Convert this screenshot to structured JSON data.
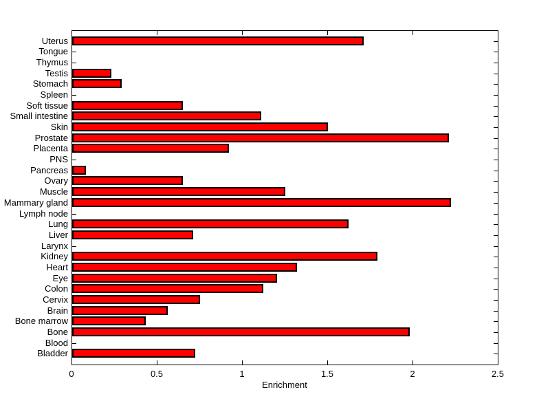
{
  "chart_data": {
    "type": "bar",
    "orientation": "horizontal",
    "title": "",
    "xlabel": "Enrichment",
    "ylabel": "",
    "xlim": [
      0,
      2.5
    ],
    "xticks": [
      0,
      0.5,
      1,
      1.5,
      2,
      2.5
    ],
    "xtick_labels": [
      "0",
      "0.5",
      "1",
      "1.5",
      "2",
      "2.5"
    ],
    "grid": false,
    "legend": null,
    "bar_color": "#FF0000",
    "bar_edge_color": "#000000",
    "background_color": "#FFFFFF",
    "categories": [
      "Uterus",
      "Tongue",
      "Thymus",
      "Testis",
      "Stomach",
      "Spleen",
      "Soft tissue",
      "Small intestine",
      "Skin",
      "Prostate",
      "Placenta",
      "PNS",
      "Pancreas",
      "Ovary",
      "Muscle",
      "Mammary gland",
      "Lymph node",
      "Lung",
      "Liver",
      "Larynx",
      "Kidney",
      "Heart",
      "Eye",
      "Colon",
      "Cervix",
      "Brain",
      "Bone marrow",
      "Bone",
      "Blood",
      "Bladder"
    ],
    "values": [
      1.71,
      0,
      0,
      0.23,
      0.29,
      0,
      0.65,
      1.11,
      1.5,
      2.21,
      0.92,
      0,
      0.08,
      0.65,
      1.25,
      2.22,
      0,
      1.62,
      0.71,
      0,
      1.79,
      1.32,
      1.2,
      1.12,
      0.75,
      0.56,
      0.43,
      1.98,
      0,
      0.72
    ]
  }
}
